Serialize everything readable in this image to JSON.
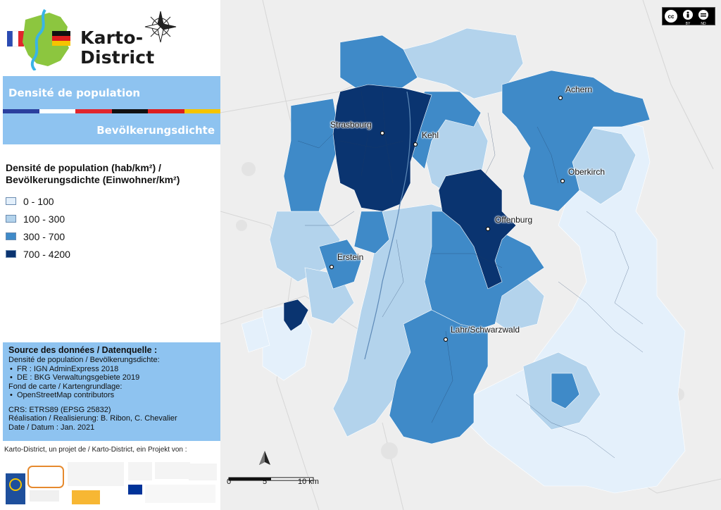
{
  "brand": {
    "title": "Karto-District"
  },
  "title": {
    "fr": "Densité de population",
    "de": "Bevölkerungsdichte"
  },
  "colors": {
    "band": "#8ec3f0",
    "class1": "#e4f0fb",
    "class2": "#b3d3ec",
    "class3": "#3f8ac8",
    "class4": "#0a3470"
  },
  "legend": {
    "title": "Densité de population (hab/km²) / Bevölkerungsdichte (Einwohner/km²)",
    "items": [
      {
        "label": "0 - 100",
        "color": "#e4f0fb"
      },
      {
        "label": "100 - 300",
        "color": "#b3d3ec"
      },
      {
        "label": "300 - 700",
        "color": "#3f8ac8"
      },
      {
        "label": "700 - 4200",
        "color": "#0a3470"
      }
    ]
  },
  "source": {
    "title": "Source des données / Datenquelle :",
    "pop_heading": "Densité de population / Bevölkerungsdichte:",
    "pop_fr": "FR : IGN AdminExpress 2018",
    "pop_de": "DE : BKG Verwaltungsgebiete 2019",
    "base_heading": "Fond de carte / Kartengrundlage:",
    "base_osm": "OpenStreetMap contributors",
    "crs": "CRS: ETRS89 (EPSG 25832)",
    "realisation": "Réalisation / Realisierung: B. Ribon, C. Chevalier",
    "date": "Date / Datum : Jan. 2021"
  },
  "partners": {
    "caption": "Karto-District, un projet de / Karto-District, ein Projekt von :"
  },
  "map": {
    "cities": [
      "Strasbourg",
      "Kehl",
      "Achern",
      "Oberkirch",
      "Offenburg",
      "Erstein",
      "Lahr/Schwarzwald"
    ],
    "scale": {
      "zero": "0",
      "mid": "5",
      "max": "10 km"
    },
    "license": "cc BY ND",
    "icons": [
      "north-arrow-icon",
      "compass-rose-icon"
    ]
  }
}
